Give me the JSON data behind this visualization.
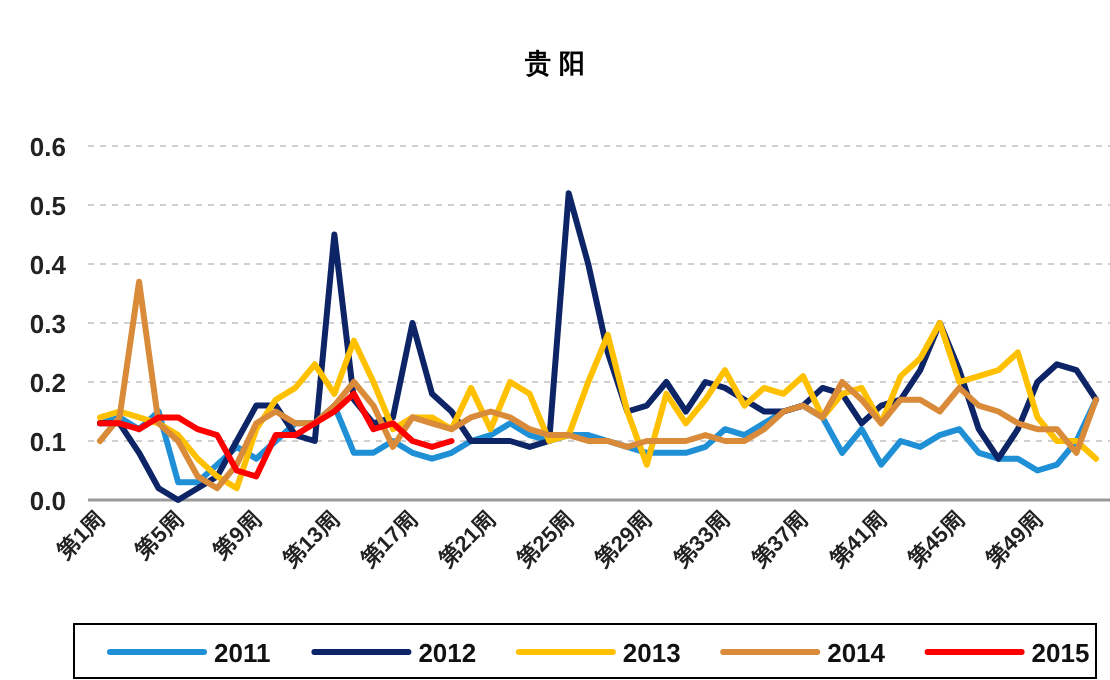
{
  "chart_data": {
    "type": "line",
    "title": "贵 阳",
    "categories": [
      "第1周",
      null,
      null,
      null,
      "第5周",
      null,
      null,
      null,
      "第9周",
      null,
      null,
      null,
      "第13周",
      null,
      null,
      null,
      "第17周",
      null,
      null,
      null,
      "第21周",
      null,
      null,
      null,
      "第25周",
      null,
      null,
      null,
      "第29周",
      null,
      null,
      null,
      "第33周",
      null,
      null,
      null,
      "第37周",
      null,
      null,
      null,
      "第41周",
      null,
      null,
      null,
      "第45周",
      null,
      null,
      null,
      "第49周",
      null,
      null,
      null
    ],
    "ylim": [
      0,
      0.6
    ],
    "yticks": [
      {
        "value": 0,
        "label": "0.0"
      },
      {
        "value": 0.1,
        "label": "0.1"
      },
      {
        "value": 0.2,
        "label": "0.2"
      },
      {
        "value": 0.3,
        "label": "0.3"
      },
      {
        "value": 0.4,
        "label": "0.4"
      },
      {
        "value": 0.5,
        "label": "0.5"
      },
      {
        "value": 0.6,
        "label": "0.6"
      }
    ],
    "grid": "y",
    "legend": "bottom",
    "line_style": "solid",
    "marker": "none",
    "series": [
      {
        "name": "2011",
        "color": "#1f8fd6",
        "values": [
          0.13,
          0.14,
          0.12,
          0.15,
          0.03,
          0.03,
          0.06,
          0.09,
          0.07,
          0.1,
          0.13,
          0.13,
          0.16,
          0.08,
          0.08,
          0.1,
          0.08,
          0.07,
          0.08,
          0.1,
          0.11,
          0.13,
          0.11,
          0.1,
          0.11,
          0.11,
          0.1,
          0.09,
          0.08,
          0.08,
          0.08,
          0.09,
          0.12,
          0.11,
          0.13,
          0.15,
          0.16,
          0.14,
          0.08,
          0.12,
          0.06,
          0.1,
          0.09,
          0.11,
          0.12,
          0.08,
          0.07,
          0.07,
          0.05,
          0.06,
          0.1,
          0.17
        ]
      },
      {
        "name": "2012",
        "color": "#0d2466",
        "values": [
          0.13,
          0.13,
          0.08,
          0.02,
          0.0,
          0.02,
          0.04,
          0.1,
          0.16,
          0.16,
          0.11,
          0.1,
          0.45,
          0.17,
          0.13,
          0.14,
          0.3,
          0.18,
          0.15,
          0.1,
          0.1,
          0.1,
          0.09,
          0.1,
          0.52,
          0.4,
          0.25,
          0.15,
          0.16,
          0.2,
          0.15,
          0.2,
          0.19,
          0.17,
          0.15,
          0.15,
          0.16,
          0.19,
          0.18,
          0.13,
          0.16,
          0.17,
          0.22,
          0.3,
          0.22,
          0.12,
          0.07,
          0.12,
          0.2,
          0.23,
          0.22,
          0.17
        ]
      },
      {
        "name": "2013",
        "color": "#ffc000",
        "values": [
          0.14,
          0.15,
          0.14,
          0.13,
          0.11,
          0.07,
          0.04,
          0.02,
          0.12,
          0.17,
          0.19,
          0.23,
          0.18,
          0.27,
          0.2,
          0.12,
          0.14,
          0.14,
          0.12,
          0.19,
          0.12,
          0.2,
          0.18,
          0.1,
          0.11,
          0.2,
          0.28,
          0.15,
          0.06,
          0.18,
          0.13,
          0.17,
          0.22,
          0.16,
          0.19,
          0.18,
          0.21,
          0.14,
          0.18,
          0.19,
          0.13,
          0.21,
          0.24,
          0.3,
          0.2,
          0.21,
          0.22,
          0.25,
          0.14,
          0.1,
          0.1,
          0.07
        ]
      },
      {
        "name": "2014",
        "color": "#d98b3a",
        "values": [
          0.1,
          0.14,
          0.37,
          0.13,
          0.1,
          0.04,
          0.02,
          0.06,
          0.13,
          0.15,
          0.13,
          0.13,
          0.16,
          0.2,
          0.16,
          0.09,
          0.14,
          0.13,
          0.12,
          0.14,
          0.15,
          0.14,
          0.12,
          0.11,
          0.11,
          0.1,
          0.1,
          0.09,
          0.1,
          0.1,
          0.1,
          0.11,
          0.1,
          0.1,
          0.12,
          0.15,
          0.16,
          0.14,
          0.2,
          0.17,
          0.13,
          0.17,
          0.17,
          0.15,
          0.19,
          0.16,
          0.15,
          0.13,
          0.12,
          0.12,
          0.08,
          0.17
        ]
      },
      {
        "name": "2015",
        "color": "#ff0000",
        "values": [
          0.13,
          0.13,
          0.12,
          0.14,
          0.14,
          0.12,
          0.11,
          0.05,
          0.04,
          0.11,
          0.11,
          0.13,
          0.15,
          0.18,
          0.12,
          0.13,
          0.1,
          0.09,
          0.1,
          null,
          null,
          null,
          null,
          null,
          null,
          null,
          null,
          null,
          null,
          null,
          null,
          null,
          null,
          null,
          null,
          null,
          null,
          null,
          null,
          null,
          null,
          null,
          null,
          null,
          null,
          null,
          null,
          null,
          null,
          null,
          null,
          null
        ]
      }
    ]
  }
}
